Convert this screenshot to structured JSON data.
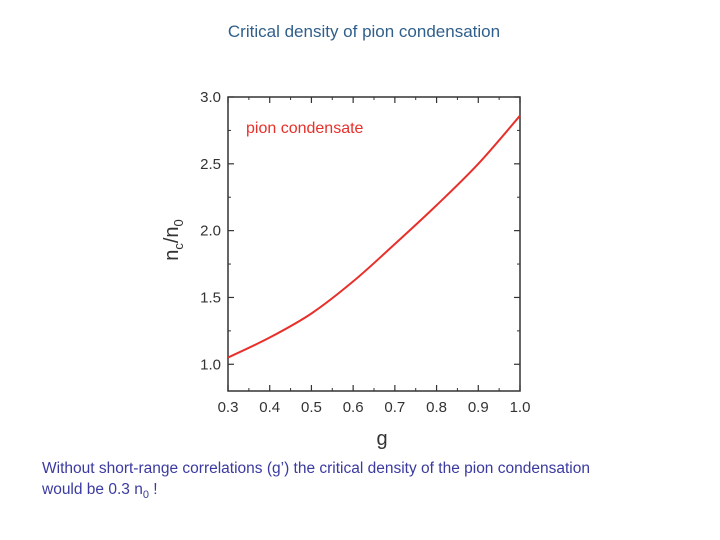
{
  "page": {
    "title": "Critical density of pion condensation",
    "caption": {
      "line1": "Without short-range correlations (g’) the critical density of the pion condensation",
      "line2_prefix": "would be 0.3 n",
      "line2_sub": "0",
      "line2_suffix": " !"
    }
  },
  "chart_data": {
    "type": "line",
    "title": "",
    "xlabel": "g",
    "ylabel_main": "n",
    "ylabel_sub_c": "c",
    "ylabel_slash": "/n",
    "ylabel_sub_0": "0",
    "xlim": [
      0.3,
      1.0
    ],
    "ylim": [
      0.8,
      3.0
    ],
    "x_ticks": [
      0.3,
      0.4,
      0.5,
      0.6,
      0.7,
      0.8,
      0.9,
      1.0
    ],
    "x_tick_labels": [
      "0.3",
      "0.4",
      "0.5",
      "0.6",
      "0.7",
      "0.8",
      "0.9",
      "1.0"
    ],
    "y_ticks": [
      1.0,
      1.5,
      2.0,
      2.5,
      3.0
    ],
    "y_tick_labels": [
      "1.0",
      "1.5",
      "2.0",
      "2.5",
      "3.0"
    ],
    "grid": false,
    "series": [
      {
        "name": "pion condensate",
        "color": "#e8302a",
        "x": [
          0.3,
          0.4,
          0.5,
          0.6,
          0.7,
          0.8,
          0.9,
          1.0
        ],
        "y": [
          1.05,
          1.2,
          1.38,
          1.62,
          1.9,
          2.19,
          2.5,
          2.86
        ]
      }
    ],
    "annotation": {
      "text": "pion condensate",
      "color": "#e8302a"
    }
  }
}
